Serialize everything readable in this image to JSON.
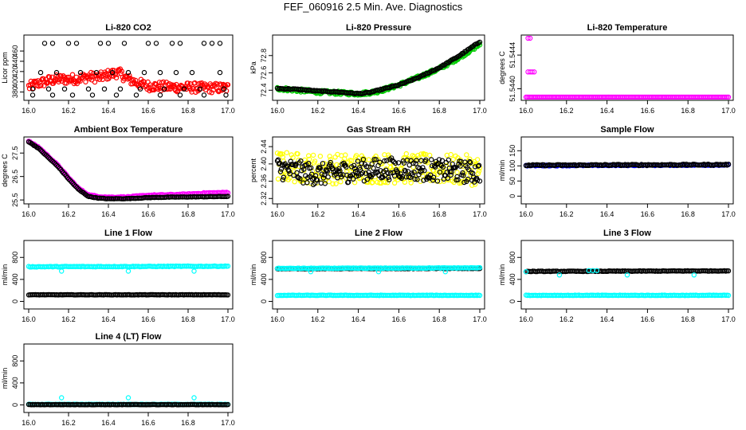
{
  "figure": {
    "title": "FEF_060916  2.5 Min. Ave. Diagnostics"
  },
  "colors": {
    "black": "#000000",
    "red": "#ff0000",
    "green": "#00cc00",
    "magenta": "#ff00ff",
    "yellow": "#ffff00",
    "blue": "#0000ff",
    "cyan": "#00ffff"
  },
  "chart_data": [
    {
      "id": "co2",
      "type": "scatter",
      "title": "Li-820 CO2",
      "ylabel": "Licor ppm",
      "xlim": [
        16.0,
        17.0
      ],
      "ylim": [
        370,
        485
      ],
      "xticks": [
        "16.0",
        "16.2",
        "16.4",
        "16.6",
        "16.8",
        "17.0"
      ],
      "yticks": [
        "380",
        "400",
        "420",
        "440",
        "460"
      ],
      "series": [
        {
          "name": "co2-red",
          "color": "red",
          "kind": "noisy",
          "noise": 6,
          "x": [
            16.0,
            16.05,
            16.1,
            16.15,
            16.2,
            16.25,
            16.3,
            16.35,
            16.4,
            16.45,
            16.5,
            16.55,
            16.6,
            16.7,
            16.8,
            16.9,
            17.0
          ],
          "y": [
            390,
            397,
            402,
            405,
            405,
            406,
            410,
            408,
            414,
            418,
            405,
            397,
            392,
            390,
            389,
            388,
            388
          ]
        },
        {
          "name": "co2-black-row1",
          "color": "black",
          "kind": "points",
          "x": [
            16.08,
            16.12,
            16.2,
            16.24,
            16.36,
            16.4,
            16.48,
            16.6,
            16.64,
            16.72,
            16.76,
            16.88,
            16.92,
            16.96
          ],
          "y": [
            475,
            475,
            475,
            475,
            475,
            475,
            475,
            475,
            475,
            475,
            475,
            475,
            475,
            475
          ]
        },
        {
          "name": "co2-black-row2",
          "color": "black",
          "kind": "points",
          "x": [
            16.06,
            16.14,
            16.26,
            16.34,
            16.42,
            16.5,
            16.58,
            16.66,
            16.74,
            16.82,
            16.96
          ],
          "y": [
            418,
            418,
            418,
            418,
            418,
            418,
            418,
            418,
            418,
            418,
            418
          ]
        },
        {
          "name": "co2-black-row3",
          "color": "black",
          "kind": "points",
          "x": [
            16.02,
            16.1,
            16.18,
            16.3,
            16.38,
            16.46,
            16.56,
            16.68,
            16.78,
            16.86,
            16.98
          ],
          "y": [
            386,
            386,
            386,
            386,
            386,
            386,
            386,
            386,
            386,
            386,
            386
          ]
        },
        {
          "name": "co2-black-row4",
          "color": "black",
          "kind": "points",
          "x": [
            16.02,
            16.12,
            16.22,
            16.32,
            16.44,
            16.54,
            16.66,
            16.76,
            16.88,
            16.99
          ],
          "y": [
            374,
            374,
            374,
            374,
            374,
            374,
            374,
            374,
            374,
            374
          ]
        }
      ]
    },
    {
      "id": "pressure",
      "type": "scatter",
      "title": "Li-820 Pressure",
      "ylabel": "kPa",
      "xlim": [
        16.0,
        17.0
      ],
      "ylim": [
        72.32,
        73.0
      ],
      "xticks": [
        "16.0",
        "16.2",
        "16.4",
        "16.6",
        "16.8",
        "17.0"
      ],
      "yticks": [
        "72.4",
        "72.6",
        "72.8"
      ],
      "series": [
        {
          "name": "pressure-green",
          "color": "green",
          "kind": "noisy",
          "noise": 0.012,
          "x": [
            16.0,
            16.1,
            16.2,
            16.3,
            16.4,
            16.45,
            16.5,
            16.6,
            16.7,
            16.8,
            16.9,
            17.0
          ],
          "y": [
            72.42,
            72.4,
            72.38,
            72.37,
            72.36,
            72.37,
            72.39,
            72.46,
            72.55,
            72.65,
            72.78,
            72.93
          ]
        },
        {
          "name": "pressure-black",
          "color": "black",
          "kind": "curve",
          "noise": 0.006,
          "x": [
            16.0,
            16.1,
            16.2,
            16.3,
            16.4,
            16.45,
            16.5,
            16.6,
            16.7,
            16.8,
            16.9,
            17.0
          ],
          "y": [
            72.42,
            72.41,
            72.39,
            72.38,
            72.36,
            72.37,
            72.4,
            72.46,
            72.55,
            72.66,
            72.8,
            72.96
          ]
        }
      ]
    },
    {
      "id": "temperature",
      "type": "scatter",
      "title": "Li-820 Temperature",
      "ylabel": "degrees C",
      "xlim": [
        16.0,
        17.0
      ],
      "ylim": [
        51.5439,
        51.5446
      ],
      "xticks": [
        "16.0",
        "16.2",
        "16.4",
        "16.6",
        "16.8",
        "17.0"
      ],
      "yticks": [
        "51.5440",
        "51.5444"
      ],
      "series": [
        {
          "name": "temp-magenta",
          "color": "magenta",
          "kind": "curve",
          "noise": 0,
          "x": [
            16.0,
            17.0
          ],
          "y": [
            51.5439,
            51.5439
          ]
        },
        {
          "name": "temp-magenta-high",
          "color": "magenta",
          "kind": "points",
          "x": [
            16.01,
            16.02
          ],
          "y": [
            51.5446,
            51.5446
          ]
        },
        {
          "name": "temp-magenta-mid",
          "color": "magenta",
          "kind": "points",
          "x": [
            16.01,
            16.02,
            16.03,
            16.04
          ],
          "y": [
            51.5442,
            51.5442,
            51.5442,
            51.5442
          ]
        }
      ]
    },
    {
      "id": "ambient",
      "type": "scatter",
      "title": "Ambient Box Temperature",
      "ylabel": "degrees C",
      "xlim": [
        16.0,
        17.0
      ],
      "ylim": [
        25.47,
        28.05
      ],
      "xticks": [
        "16.0",
        "16.2",
        "16.4",
        "16.6",
        "16.8",
        "17.0"
      ],
      "yticks": [
        "25.5",
        "26.5",
        "27.5"
      ],
      "series": [
        {
          "name": "ambient-magenta",
          "color": "magenta",
          "kind": "curve",
          "noise": 0.02,
          "x": [
            16.0,
            16.05,
            16.1,
            16.15,
            16.2,
            16.25,
            16.3,
            16.35,
            16.4,
            16.5,
            16.6,
            16.7,
            16.8,
            16.9,
            17.0
          ],
          "y": [
            28.0,
            27.75,
            27.35,
            26.95,
            26.45,
            26.0,
            25.72,
            25.65,
            25.62,
            25.63,
            25.7,
            25.72,
            25.75,
            25.8,
            25.82
          ]
        },
        {
          "name": "ambient-black",
          "color": "black",
          "kind": "curve",
          "noise": 0.01,
          "x": [
            16.0,
            16.05,
            16.1,
            16.15,
            16.2,
            16.25,
            16.3,
            16.35,
            16.4,
            16.5,
            16.6,
            16.7,
            16.8,
            16.9,
            17.0
          ],
          "y": [
            27.98,
            27.7,
            27.3,
            26.9,
            26.4,
            25.95,
            25.65,
            25.58,
            25.55,
            25.56,
            25.6,
            25.62,
            25.63,
            25.64,
            25.65
          ]
        }
      ]
    },
    {
      "id": "rh",
      "type": "scatter",
      "title": "Gas Stream RH",
      "ylabel": "percent",
      "xlim": [
        16.0,
        17.0
      ],
      "ylim": [
        2.315,
        2.455
      ],
      "xticks": [
        "16.0",
        "16.2",
        "16.4",
        "16.6",
        "16.8",
        "17.0"
      ],
      "yticks": [
        "2.32",
        "2.36",
        "2.40",
        "2.44"
      ],
      "series": [
        {
          "name": "rh-yellow",
          "color": "yellow",
          "kind": "noisy",
          "noise": 0.022,
          "x": [
            16.0,
            16.2,
            16.4,
            16.6,
            16.8,
            17.0
          ],
          "y": [
            2.395,
            2.388,
            2.39,
            2.39,
            2.388,
            2.385
          ]
        },
        {
          "name": "rh-black",
          "color": "black",
          "kind": "noisy",
          "noise": 0.016,
          "x": [
            16.0,
            16.2,
            16.4,
            16.6,
            16.8,
            17.0
          ],
          "y": [
            2.39,
            2.375,
            2.385,
            2.39,
            2.385,
            2.38
          ]
        }
      ]
    },
    {
      "id": "sample",
      "type": "scatter",
      "title": "Sample Flow",
      "ylabel": "ml/min",
      "xlim": [
        16.0,
        17.0
      ],
      "ylim": [
        -15,
        185
      ],
      "xticks": [
        "16.0",
        "16.2",
        "16.4",
        "16.6",
        "16.8",
        "17.0"
      ],
      "yticks": [
        "0",
        "50",
        "100",
        "150"
      ],
      "series": [
        {
          "name": "sample-blue",
          "color": "blue",
          "kind": "curve",
          "noise": 1.5,
          "x": [
            16.0,
            17.0
          ],
          "y": [
            101,
            103
          ]
        },
        {
          "name": "sample-black",
          "color": "black",
          "kind": "curve",
          "noise": 2,
          "x": [
            16.0,
            17.0
          ],
          "y": [
            102,
            104
          ]
        }
      ]
    },
    {
      "id": "line1",
      "type": "scatter",
      "title": "Line 1 Flow",
      "ylabel": "ml/min",
      "xlim": [
        16.0,
        17.0
      ],
      "ylim": [
        -80,
        1050
      ],
      "xticks": [
        "16.0",
        "16.2",
        "16.4",
        "16.6",
        "16.8",
        "17.0"
      ],
      "yticks": [
        "0",
        "400",
        "800"
      ],
      "series": [
        {
          "name": "line1-cyan",
          "color": "cyan",
          "kind": "curve",
          "noise": 6,
          "x": [
            16.0,
            17.0
          ],
          "y": [
            630,
            640
          ]
        },
        {
          "name": "line1-cyan-dips",
          "color": "cyan",
          "kind": "points",
          "x": [
            16.165,
            16.5,
            16.83
          ],
          "y": [
            550,
            550,
            550
          ]
        },
        {
          "name": "line1-black",
          "color": "black",
          "kind": "curve",
          "noise": 3,
          "x": [
            16.0,
            17.0
          ],
          "y": [
            120,
            120
          ]
        }
      ]
    },
    {
      "id": "line2",
      "type": "scatter",
      "title": "Line 2 Flow",
      "ylabel": "ml/min",
      "xlim": [
        16.0,
        17.0
      ],
      "ylim": [
        -80,
        1050
      ],
      "xticks": [
        "16.0",
        "16.2",
        "16.4",
        "16.6",
        "16.8",
        "17.0"
      ],
      "yticks": [
        "0",
        "400",
        "800"
      ],
      "series": [
        {
          "name": "line2-black",
          "color": "black",
          "kind": "curve",
          "noise": 5,
          "x": [
            16.0,
            17.0
          ],
          "y": [
            595,
            600
          ]
        },
        {
          "name": "line2-cyan-main",
          "color": "cyan",
          "kind": "curve",
          "noise": 5,
          "x": [
            16.0,
            17.0
          ],
          "y": [
            600,
            610
          ]
        },
        {
          "name": "line2-cyan-dips",
          "color": "cyan",
          "kind": "points",
          "x": [
            16.165,
            16.5,
            16.83
          ],
          "y": [
            540,
            540,
            540
          ]
        },
        {
          "name": "line2-cyan-low",
          "color": "cyan",
          "kind": "curve",
          "noise": 4,
          "x": [
            16.0,
            17.0
          ],
          "y": [
            110,
            110
          ]
        }
      ]
    },
    {
      "id": "line3",
      "type": "scatter",
      "title": "Line 3 Flow",
      "ylabel": "ml/min",
      "xlim": [
        16.0,
        17.0
      ],
      "ylim": [
        -80,
        1050
      ],
      "xticks": [
        "16.0",
        "16.2",
        "16.4",
        "16.6",
        "16.8",
        "17.0"
      ],
      "yticks": [
        "0",
        "400",
        "800"
      ],
      "series": [
        {
          "name": "line3-black",
          "color": "black",
          "kind": "curve",
          "noise": 5,
          "x": [
            16.0,
            17.0
          ],
          "y": [
            545,
            555
          ]
        },
        {
          "name": "line3-cyan-main",
          "color": "cyan",
          "kind": "points",
          "x": [
            16.0,
            16.31,
            16.33,
            16.35
          ],
          "y": [
            540,
            560,
            560,
            560
          ]
        },
        {
          "name": "line3-cyan-dips",
          "color": "cyan",
          "kind": "points",
          "x": [
            16.165,
            16.5,
            16.83
          ],
          "y": [
            480,
            480,
            480
          ]
        },
        {
          "name": "line3-cyan-low",
          "color": "cyan",
          "kind": "curve",
          "noise": 4,
          "x": [
            16.0,
            17.0
          ],
          "y": [
            110,
            110
          ]
        }
      ]
    },
    {
      "id": "line4",
      "type": "scatter",
      "title": "Line 4 (LT) Flow",
      "ylabel": "ml/min",
      "xlim": [
        16.0,
        17.0
      ],
      "ylim": [
        -80,
        1050
      ],
      "xticks": [
        "16.0",
        "16.2",
        "16.4",
        "16.6",
        "16.8",
        "17.0"
      ],
      "yticks": [
        "0",
        "400",
        "800"
      ],
      "series": [
        {
          "name": "line4-cyan",
          "color": "cyan",
          "kind": "curve",
          "noise": 3,
          "x": [
            16.0,
            17.0
          ],
          "y": [
            10,
            10
          ]
        },
        {
          "name": "line4-cyan-spikes",
          "color": "cyan",
          "kind": "points",
          "x": [
            16.165,
            16.5,
            16.83
          ],
          "y": [
            130,
            130,
            130
          ]
        },
        {
          "name": "line4-black",
          "color": "black",
          "kind": "curve",
          "noise": 3,
          "x": [
            16.0,
            17.0
          ],
          "y": [
            5,
            5
          ]
        }
      ]
    }
  ]
}
